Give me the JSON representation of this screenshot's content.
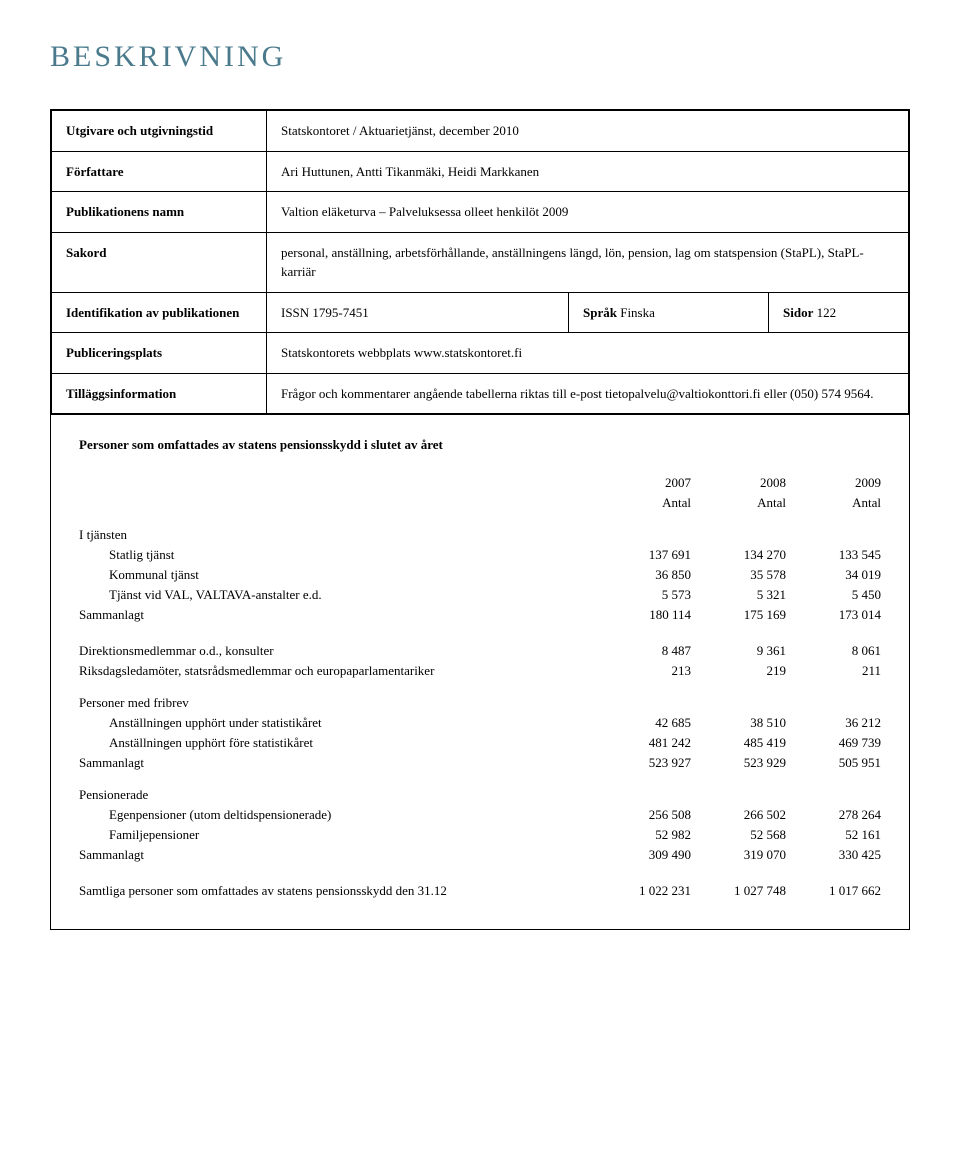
{
  "title": "BESKRIVNING",
  "meta": {
    "rows": [
      {
        "label": "Utgivare och utgivningstid",
        "value": "Statskontoret / Aktuarietjänst, december 2010"
      },
      {
        "label": "Författare",
        "value": "Ari Huttunen, Antti Tikanmäki, Heidi Markkanen"
      },
      {
        "label": "Publikationens namn",
        "value": "Valtion eläketurva – Palveluksessa olleet henkilöt 2009"
      },
      {
        "label": "Sakord",
        "value": "personal, anställning, arbetsförhållande, anställningens längd, lön, pension, lag om statspension (StaPL), StaPL-karriär"
      }
    ],
    "identRow": {
      "label": "Identifikation av publikationen",
      "issn": "ISSN 1795-7451",
      "sprakLabel": "Språk",
      "sprakValue": "Finska",
      "sidorLabel": "Sidor",
      "sidorValue": "122"
    },
    "bottomRows": [
      {
        "label": "Publiceringsplats",
        "value": "Statskontorets webbplats www.statskontoret.fi"
      },
      {
        "label": "Tilläggsinformation",
        "value": "Frågor och kommentarer angående tabellerna riktas till e-post tietopalvelu@valtiokonttori.fi eller (050) 574 9564."
      }
    ]
  },
  "dataTable": {
    "title": "Personer som omfattades av statens pensionsskydd i slutet av året",
    "headerYears": [
      "2007",
      "2008",
      "2009"
    ],
    "headerUnits": [
      "Antal",
      "Antal",
      "Antal"
    ],
    "groups": [
      {
        "head": "I tjänsten",
        "rows": [
          {
            "label": "Statlig tjänst",
            "vals": [
              "137 691",
              "134 270",
              "133 545"
            ]
          },
          {
            "label": "Kommunal tjänst",
            "vals": [
              "36 850",
              "35 578",
              "34 019"
            ]
          },
          {
            "label": "Tjänst vid VAL, VALTAVA-anstalter e.d.",
            "vals": [
              "5 573",
              "5 321",
              "5 450"
            ]
          }
        ],
        "total": {
          "label": "Sammanlagt",
          "vals": [
            "180 114",
            "175 169",
            "173 014"
          ]
        }
      },
      {
        "head": null,
        "rows": [
          {
            "label": "Direktionsmedlemmar o.d., konsulter",
            "vals": [
              "8 487",
              "9 361",
              "8 061"
            ]
          },
          {
            "label": "Riksdagsledamöter, statsrådsmedlemmar och europaparlamentariker",
            "vals": [
              "213",
              "219",
              "211"
            ]
          }
        ],
        "total": null
      },
      {
        "head": "Personer med fribrev",
        "rows": [
          {
            "label": "Anställningen upphört under statistikåret",
            "vals": [
              "42 685",
              "38 510",
              "36 212"
            ]
          },
          {
            "label": "Anställningen upphört före statistikåret",
            "vals": [
              "481 242",
              "485 419",
              "469 739"
            ]
          }
        ],
        "total": {
          "label": "Sammanlagt",
          "vals": [
            "523 927",
            "523 929",
            "505 951"
          ]
        }
      },
      {
        "head": "Pensionerade",
        "rows": [
          {
            "label": "Egenpensioner (utom deltidspensionerade)",
            "vals": [
              "256 508",
              "266 502",
              "278 264"
            ]
          },
          {
            "label": "Familjepensioner",
            "vals": [
              "52 982",
              "52 568",
              "52 161"
            ]
          }
        ],
        "total": {
          "label": "Sammanlagt",
          "vals": [
            "309 490",
            "319 070",
            "330 425"
          ]
        }
      }
    ],
    "grandTotal": {
      "label": "Samtliga personer som omfattades av statens pensionsskydd den 31.12",
      "vals": [
        "1 022 231",
        "1 027 748",
        "1 017 662"
      ]
    }
  }
}
